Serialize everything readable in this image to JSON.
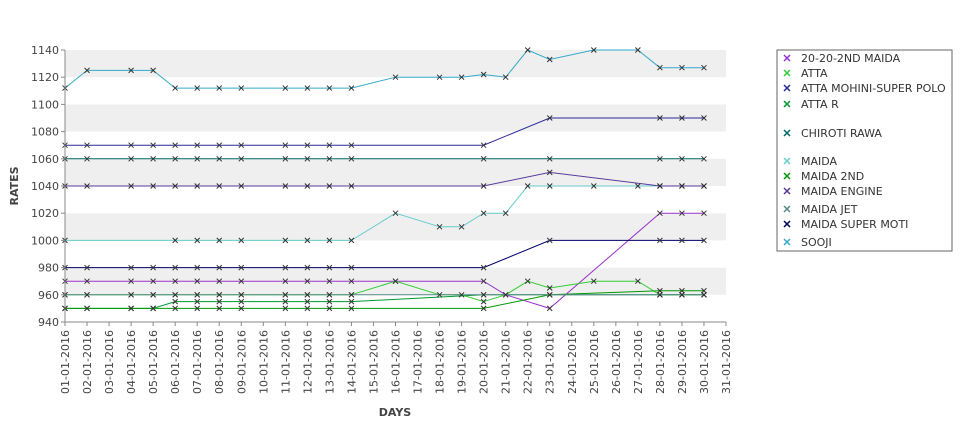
{
  "chart_data": {
    "type": "line",
    "xlabel": "DAYS",
    "ylabel": "RATES",
    "ylim": [
      940,
      1140
    ],
    "yticks": [
      940,
      960,
      980,
      1000,
      1020,
      1040,
      1060,
      1080,
      1100,
      1120,
      1140
    ],
    "legend_position": "right",
    "grid": "alternating horizontal bands",
    "x": [
      "01-01-2016",
      "02-01-2016",
      "03-01-2016",
      "04-01-2016",
      "05-01-2016",
      "06-01-2016",
      "07-01-2016",
      "08-01-2016",
      "09-01-2016",
      "10-01-2016",
      "11-01-2016",
      "12-01-2016",
      "13-01-2016",
      "14-01-2016",
      "15-01-2016",
      "16-01-2016",
      "17-01-2016",
      "18-01-2016",
      "19-01-2016",
      "20-01-2016",
      "21-01-2016",
      "22-01-2016",
      "23-01-2016",
      "24-01-2016",
      "25-01-2016",
      "26-01-2016",
      "27-01-2016",
      "28-01-2016",
      "29-01-2016",
      "30-01-2016",
      "31-01-2016"
    ],
    "series": [
      {
        "name": "20-20-2ND MAIDA",
        "color": "#9933cc",
        "values": [
          970,
          970,
          null,
          970,
          970,
          970,
          970,
          970,
          970,
          null,
          970,
          970,
          970,
          970,
          null,
          970,
          null,
          null,
          null,
          970,
          960,
          null,
          950,
          null,
          null,
          null,
          null,
          1020,
          1020,
          1020,
          null
        ]
      },
      {
        "name": "ATTA",
        "color": "#33cc33",
        "values": [
          960,
          960,
          null,
          960,
          960,
          960,
          960,
          960,
          960,
          null,
          960,
          960,
          960,
          960,
          null,
          970,
          null,
          960,
          960,
          955,
          960,
          970,
          965,
          null,
          970,
          null,
          970,
          960,
          960,
          960,
          null
        ]
      },
      {
        "name": "ATTA MOHINI-SUPER POLO",
        "color": "#2a2a99",
        "values": [
          1070,
          1070,
          null,
          1070,
          1070,
          1070,
          1070,
          1070,
          1070,
          null,
          1070,
          1070,
          1070,
          1070,
          null,
          null,
          null,
          null,
          null,
          1070,
          null,
          null,
          1090,
          null,
          null,
          null,
          null,
          1090,
          1090,
          1090,
          null
        ]
      },
      {
        "name": "ATTA R",
        "color": "#009933",
        "values": [
          950,
          950,
          null,
          950,
          950,
          955,
          955,
          955,
          955,
          null,
          955,
          955,
          955,
          955,
          null,
          null,
          null,
          null,
          null,
          960,
          null,
          null,
          960,
          null,
          null,
          null,
          null,
          960,
          960,
          960,
          null
        ]
      },
      {
        "name": "CHIROTI RAWA",
        "color": "#006666",
        "values": [
          1060,
          1060,
          null,
          1060,
          1060,
          1060,
          1060,
          1060,
          1060,
          null,
          1060,
          1060,
          1060,
          1060,
          null,
          null,
          null,
          null,
          null,
          1060,
          null,
          null,
          1060,
          null,
          null,
          null,
          null,
          1060,
          1060,
          1060,
          null
        ]
      },
      {
        "name": "MAIDA",
        "color": "#66cccc",
        "values": [
          1000,
          null,
          null,
          null,
          null,
          1000,
          1000,
          1000,
          1000,
          null,
          1000,
          1000,
          1000,
          1000,
          null,
          1020,
          null,
          1010,
          1010,
          1020,
          1020,
          1040,
          1040,
          null,
          1040,
          null,
          1040,
          1040,
          1040,
          1040,
          null
        ]
      },
      {
        "name": "MAIDA 2ND",
        "color": "#009900",
        "values": [
          950,
          950,
          null,
          950,
          950,
          950,
          950,
          950,
          950,
          null,
          950,
          950,
          950,
          950,
          null,
          null,
          null,
          null,
          null,
          950,
          null,
          null,
          960,
          null,
          null,
          null,
          null,
          963,
          963,
          963,
          null
        ]
      },
      {
        "name": "MAIDA ENGINE",
        "color": "#5a3a99",
        "values": [
          1040,
          1040,
          null,
          1040,
          1040,
          1040,
          1040,
          1040,
          1040,
          null,
          1040,
          1040,
          1040,
          1040,
          null,
          null,
          null,
          null,
          null,
          1040,
          null,
          null,
          1050,
          null,
          null,
          null,
          null,
          1040,
          1040,
          1040,
          null
        ]
      },
      {
        "name": "MAIDA JET",
        "color": "#558888",
        "values": [
          960,
          960,
          null,
          960,
          960,
          960,
          960,
          960,
          960,
          null,
          960,
          960,
          960,
          960,
          null,
          null,
          null,
          null,
          null,
          960,
          null,
          null,
          960,
          null,
          null,
          null,
          null,
          960,
          960,
          960,
          null
        ]
      },
      {
        "name": "MAIDA SUPER MOTI",
        "color": "#000066",
        "values": [
          980,
          980,
          null,
          980,
          980,
          980,
          980,
          980,
          980,
          null,
          980,
          980,
          980,
          980,
          null,
          null,
          null,
          null,
          null,
          980,
          null,
          null,
          1000,
          null,
          null,
          null,
          null,
          1000,
          1000,
          1000,
          null
        ]
      },
      {
        "name": "SOOJI",
        "color": "#33aacc",
        "values": [
          1112,
          1125,
          null,
          1125,
          1125,
          1112,
          1112,
          1112,
          1112,
          null,
          1112,
          1112,
          1112,
          1112,
          null,
          1120,
          null,
          1120,
          1120,
          1122,
          1120,
          1140,
          1133,
          null,
          1140,
          null,
          1140,
          1127,
          1127,
          1127,
          null
        ]
      }
    ]
  }
}
